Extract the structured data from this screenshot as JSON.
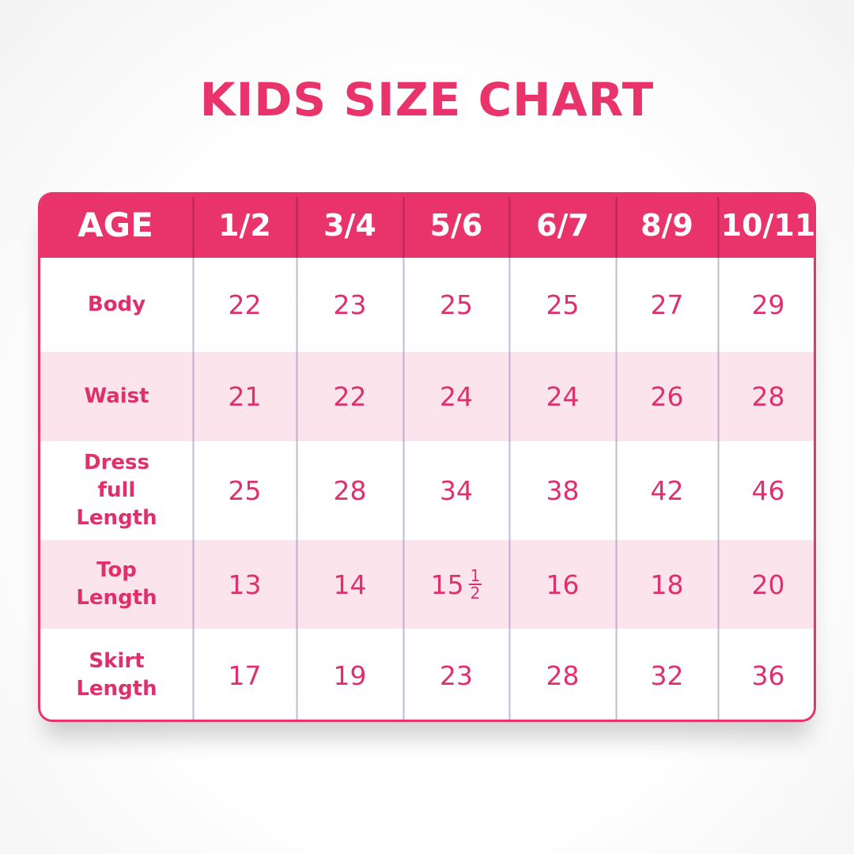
{
  "title": "KIDS SIZE CHART",
  "colors": {
    "accent": "#e8336b",
    "row_alt": "#fce4ec",
    "text": "#e0306a"
  },
  "chart_data": {
    "type": "table",
    "title": "KIDS SIZE CHART",
    "columns": [
      "AGE",
      "1/2",
      "3/4",
      "5/6",
      "6/7",
      "8/9",
      "10/11"
    ],
    "rows": [
      {
        "label": "Body",
        "values": [
          "22",
          "23",
          "25",
          "25",
          "27",
          "29"
        ]
      },
      {
        "label": "Waist",
        "values": [
          "21",
          "22",
          "24",
          "24",
          "26",
          "28"
        ]
      },
      {
        "label": "Dress full Length",
        "values": [
          "25",
          "28",
          "34",
          "38",
          "42",
          "46"
        ]
      },
      {
        "label": "Top Length",
        "values": [
          "13",
          "14",
          "15 1/2",
          "16",
          "18",
          "20"
        ]
      },
      {
        "label": "Skirt Length",
        "values": [
          "17",
          "19",
          "23",
          "28",
          "32",
          "36"
        ]
      }
    ]
  }
}
